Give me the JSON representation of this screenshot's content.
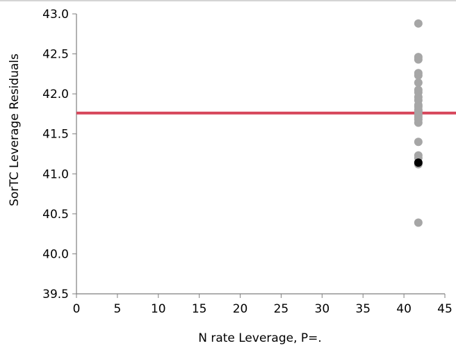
{
  "chart_data": {
    "type": "scatter",
    "title": "",
    "xlabel": "N rate Leverage, P=.",
    "ylabel": "SorTC Leverage Residuals",
    "xlim": [
      0,
      45
    ],
    "ylim": [
      39.5,
      43.0
    ],
    "x_ticks": [
      "0",
      "5",
      "10",
      "15",
      "20",
      "25",
      "30",
      "35",
      "40",
      "45"
    ],
    "y_ticks": [
      "39.5",
      "40.0",
      "40.5",
      "41.0",
      "41.5",
      "42.0",
      "42.5",
      "43.0"
    ],
    "grid": false,
    "reference_line": {
      "y": 41.76,
      "color": "#d6455a"
    },
    "series": [
      {
        "color": "#a6a6a6",
        "points": [
          {
            "x": 41.76,
            "y": 42.88
          },
          {
            "x": 41.76,
            "y": 42.46
          },
          {
            "x": 41.76,
            "y": 42.43
          },
          {
            "x": 41.76,
            "y": 42.26
          },
          {
            "x": 41.76,
            "y": 42.23
          },
          {
            "x": 41.76,
            "y": 42.14
          },
          {
            "x": 41.76,
            "y": 42.05
          },
          {
            "x": 41.76,
            "y": 42.02
          },
          {
            "x": 41.76,
            "y": 41.96
          },
          {
            "x": 41.76,
            "y": 41.92
          },
          {
            "x": 41.76,
            "y": 41.86
          },
          {
            "x": 41.76,
            "y": 41.84
          },
          {
            "x": 41.76,
            "y": 41.8
          },
          {
            "x": 41.76,
            "y": 41.78
          },
          {
            "x": 41.76,
            "y": 41.74
          },
          {
            "x": 41.76,
            "y": 41.71
          },
          {
            "x": 41.76,
            "y": 41.68
          },
          {
            "x": 41.76,
            "y": 41.64
          },
          {
            "x": 41.76,
            "y": 41.4
          },
          {
            "x": 41.76,
            "y": 41.23
          },
          {
            "x": 41.76,
            "y": 41.2
          },
          {
            "x": 41.76,
            "y": 41.12
          },
          {
            "x": 41.76,
            "y": 40.39
          }
        ]
      },
      {
        "color": "#000000",
        "points": [
          {
            "x": 41.76,
            "y": 41.14
          }
        ]
      }
    ]
  }
}
